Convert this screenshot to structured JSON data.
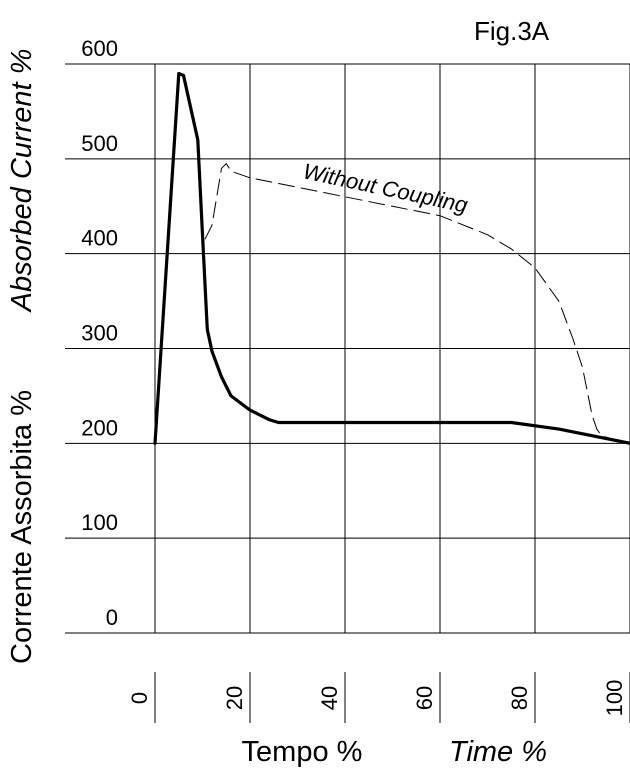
{
  "figure_label": "Fig.3A",
  "chart_data": {
    "type": "line",
    "title": "Fig.3A",
    "xlabel": "Tempo %",
    "xlabel_en": "Time %",
    "ylabel": "Corrente Assorbita %",
    "ylabel_en": "Absorbed Current %",
    "xlim": [
      0,
      100
    ],
    "ylim": [
      0,
      600
    ],
    "x_ticks": [
      0,
      20,
      40,
      60,
      80,
      100
    ],
    "x_tick_labels": [
      "0",
      "20",
      "40",
      "60",
      "80",
      "100"
    ],
    "y_ticks": [
      0,
      100,
      200,
      300,
      400,
      500,
      600
    ],
    "y_tick_labels": [
      "0",
      "100",
      "200",
      "300",
      "400",
      "500",
      "600"
    ],
    "grid": true,
    "series": [
      {
        "style": "solid-bold",
        "x": [
          0,
          5,
          6,
          9,
          10,
          11,
          12,
          14,
          16,
          20,
          24,
          26,
          50,
          70,
          75,
          85,
          100
        ],
        "y": [
          200,
          590,
          588,
          520,
          420,
          320,
          297,
          270,
          250,
          235,
          225,
          222,
          222,
          222,
          222,
          215,
          200
        ]
      },
      {
        "name": "Without Coupling",
        "style": "dashed",
        "x": [
          0,
          5,
          6,
          9,
          10,
          12,
          14,
          15,
          16,
          20,
          30,
          40,
          50,
          60,
          70,
          75,
          80,
          85,
          88,
          90,
          92,
          93,
          94,
          96,
          100
        ],
        "y": [
          200,
          590,
          588,
          520,
          410,
          430,
          490,
          495,
          487,
          480,
          470,
          460,
          450,
          440,
          420,
          405,
          385,
          350,
          310,
          280,
          230,
          215,
          208,
          205,
          200
        ]
      }
    ],
    "annotations": [
      {
        "text": "Without Coupling",
        "series": "Without Coupling"
      }
    ]
  }
}
